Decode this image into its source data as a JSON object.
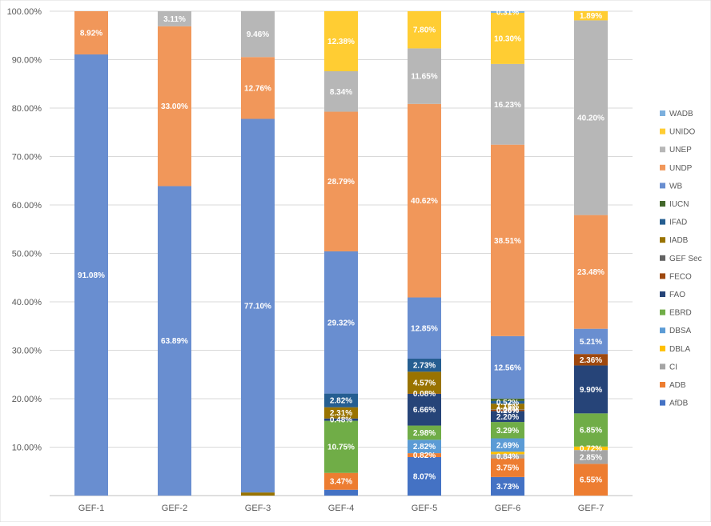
{
  "chart_data": {
    "type": "bar",
    "stacked": true,
    "normalized": true,
    "title": "",
    "xlabel": "",
    "ylabel": "",
    "ylim": [
      0,
      100
    ],
    "grid": true,
    "legend_position": "right",
    "categories": [
      "GEF-1",
      "GEF-2",
      "GEF-3",
      "GEF-4",
      "GEF-5",
      "GEF-6",
      "GEF-7"
    ],
    "y_ticks": [
      "10.00%",
      "20.00%",
      "30.00%",
      "40.00%",
      "50.00%",
      "60.00%",
      "70.00%",
      "80.00%",
      "90.00%",
      "100.00%"
    ],
    "series": [
      {
        "name": "AfDB",
        "color": "#4472C4",
        "values": [
          0,
          0,
          0,
          1.2,
          8.07,
          3.73,
          0
        ],
        "labels": [
          "",
          "",
          "",
          "",
          "8.07%",
          "3.73%",
          ""
        ]
      },
      {
        "name": "ADB",
        "color": "#ED7D31",
        "values": [
          0,
          0,
          0,
          3.47,
          0.82,
          3.75,
          6.55
        ],
        "labels": [
          "",
          "",
          "",
          "3.47%",
          "0.82%",
          "3.75%",
          "6.55%"
        ]
      },
      {
        "name": "CI",
        "color": "#A5A5A5",
        "values": [
          0,
          0,
          0,
          0,
          0,
          0.84,
          2.85
        ],
        "labels": [
          "",
          "",
          "",
          "",
          "",
          "0.84%",
          "2.85%"
        ]
      },
      {
        "name": "DBLA",
        "color": "#FFC000",
        "values": [
          0,
          0,
          0,
          0,
          0,
          0.5,
          0.72
        ],
        "labels": [
          "",
          "",
          "",
          "",
          "",
          "",
          "0.72%"
        ]
      },
      {
        "name": "DBSA",
        "color": "#5B9BD5",
        "values": [
          0,
          0,
          0,
          0,
          2.82,
          2.69,
          0
        ],
        "labels": [
          "",
          "",
          "",
          "",
          "2.82%",
          "2.69%",
          ""
        ]
      },
      {
        "name": "EBRD",
        "color": "#70AD47",
        "values": [
          0,
          0,
          0,
          10.75,
          2.98,
          3.29,
          6.85
        ],
        "labels": [
          "",
          "",
          "",
          "10.75%",
          "2.98%",
          "3.29%",
          "6.85%"
        ]
      },
      {
        "name": "FAO",
        "color": "#264478",
        "values": [
          0,
          0,
          0,
          0.48,
          6.66,
          2.2,
          9.9
        ],
        "labels": [
          "",
          "",
          "",
          "0.48%",
          "6.66%",
          "2.20%",
          "9.90%"
        ]
      },
      {
        "name": "FECO",
        "color": "#9E480E",
        "values": [
          0,
          0,
          0,
          0,
          0.08,
          0.26,
          2.36
        ],
        "labels": [
          "",
          "",
          "",
          "",
          "0.08%",
          "0.26%",
          "2.36%"
        ]
      },
      {
        "name": "GEF Sec",
        "color": "#636363",
        "values": [
          0,
          0,
          0,
          0,
          0,
          0.08,
          0
        ],
        "labels": [
          "",
          "",
          "",
          "",
          "",
          "0.08%",
          ""
        ]
      },
      {
        "name": "IADB",
        "color": "#997300",
        "values": [
          0,
          0,
          0.64,
          2.31,
          4.57,
          1.15,
          0
        ],
        "labels": [
          "",
          "",
          "",
          "2.31%",
          "4.57%",
          "1.15%",
          ""
        ]
      },
      {
        "name": "IFAD",
        "color": "#255E91",
        "values": [
          0,
          0,
          0,
          2.82,
          2.73,
          0.52,
          0
        ],
        "labels": [
          "",
          "",
          "",
          "2.82%",
          "2.73%",
          "0.52%",
          ""
        ]
      },
      {
        "name": "IUCN",
        "color": "#43682B",
        "values": [
          0,
          0,
          0,
          0,
          0,
          0.5,
          0
        ],
        "labels": [
          "",
          "",
          "",
          "",
          "",
          "",
          ""
        ]
      },
      {
        "name": "WB",
        "color": "#698ED0",
        "values": [
          91.08,
          63.89,
          77.1,
          29.32,
          12.85,
          12.56,
          5.21
        ],
        "labels": [
          "91.08%",
          "63.89%",
          "77.10%",
          "29.32%",
          "12.85%",
          "12.56%",
          "5.21%"
        ]
      },
      {
        "name": "UNDP",
        "color": "#F1975A",
        "values": [
          8.92,
          33.0,
          12.76,
          28.79,
          40.62,
          38.51,
          23.48
        ],
        "labels": [
          "8.92%",
          "33.00%",
          "12.76%",
          "28.79%",
          "40.62%",
          "38.51%",
          "23.48%"
        ]
      },
      {
        "name": "UNEP",
        "color": "#B7B7B7",
        "values": [
          0,
          3.11,
          9.46,
          8.34,
          11.65,
          16.23,
          40.2
        ],
        "labels": [
          "",
          "3.11%",
          "9.46%",
          "8.34%",
          "11.65%",
          "16.23%",
          "40.20%"
        ]
      },
      {
        "name": "UNIDO",
        "color": "#FFCD33",
        "values": [
          0,
          0,
          0,
          12.38,
          7.8,
          10.3,
          1.89
        ],
        "labels": [
          "",
          "",
          "",
          "12.38%",
          "7.80%",
          "10.30%",
          "1.89%"
        ]
      },
      {
        "name": "WADB",
        "color": "#7CAFDD",
        "values": [
          0,
          0,
          0,
          0,
          0,
          0.31,
          0
        ],
        "labels": [
          "",
          "",
          "",
          "",
          "",
          "0.31%",
          ""
        ]
      }
    ]
  }
}
